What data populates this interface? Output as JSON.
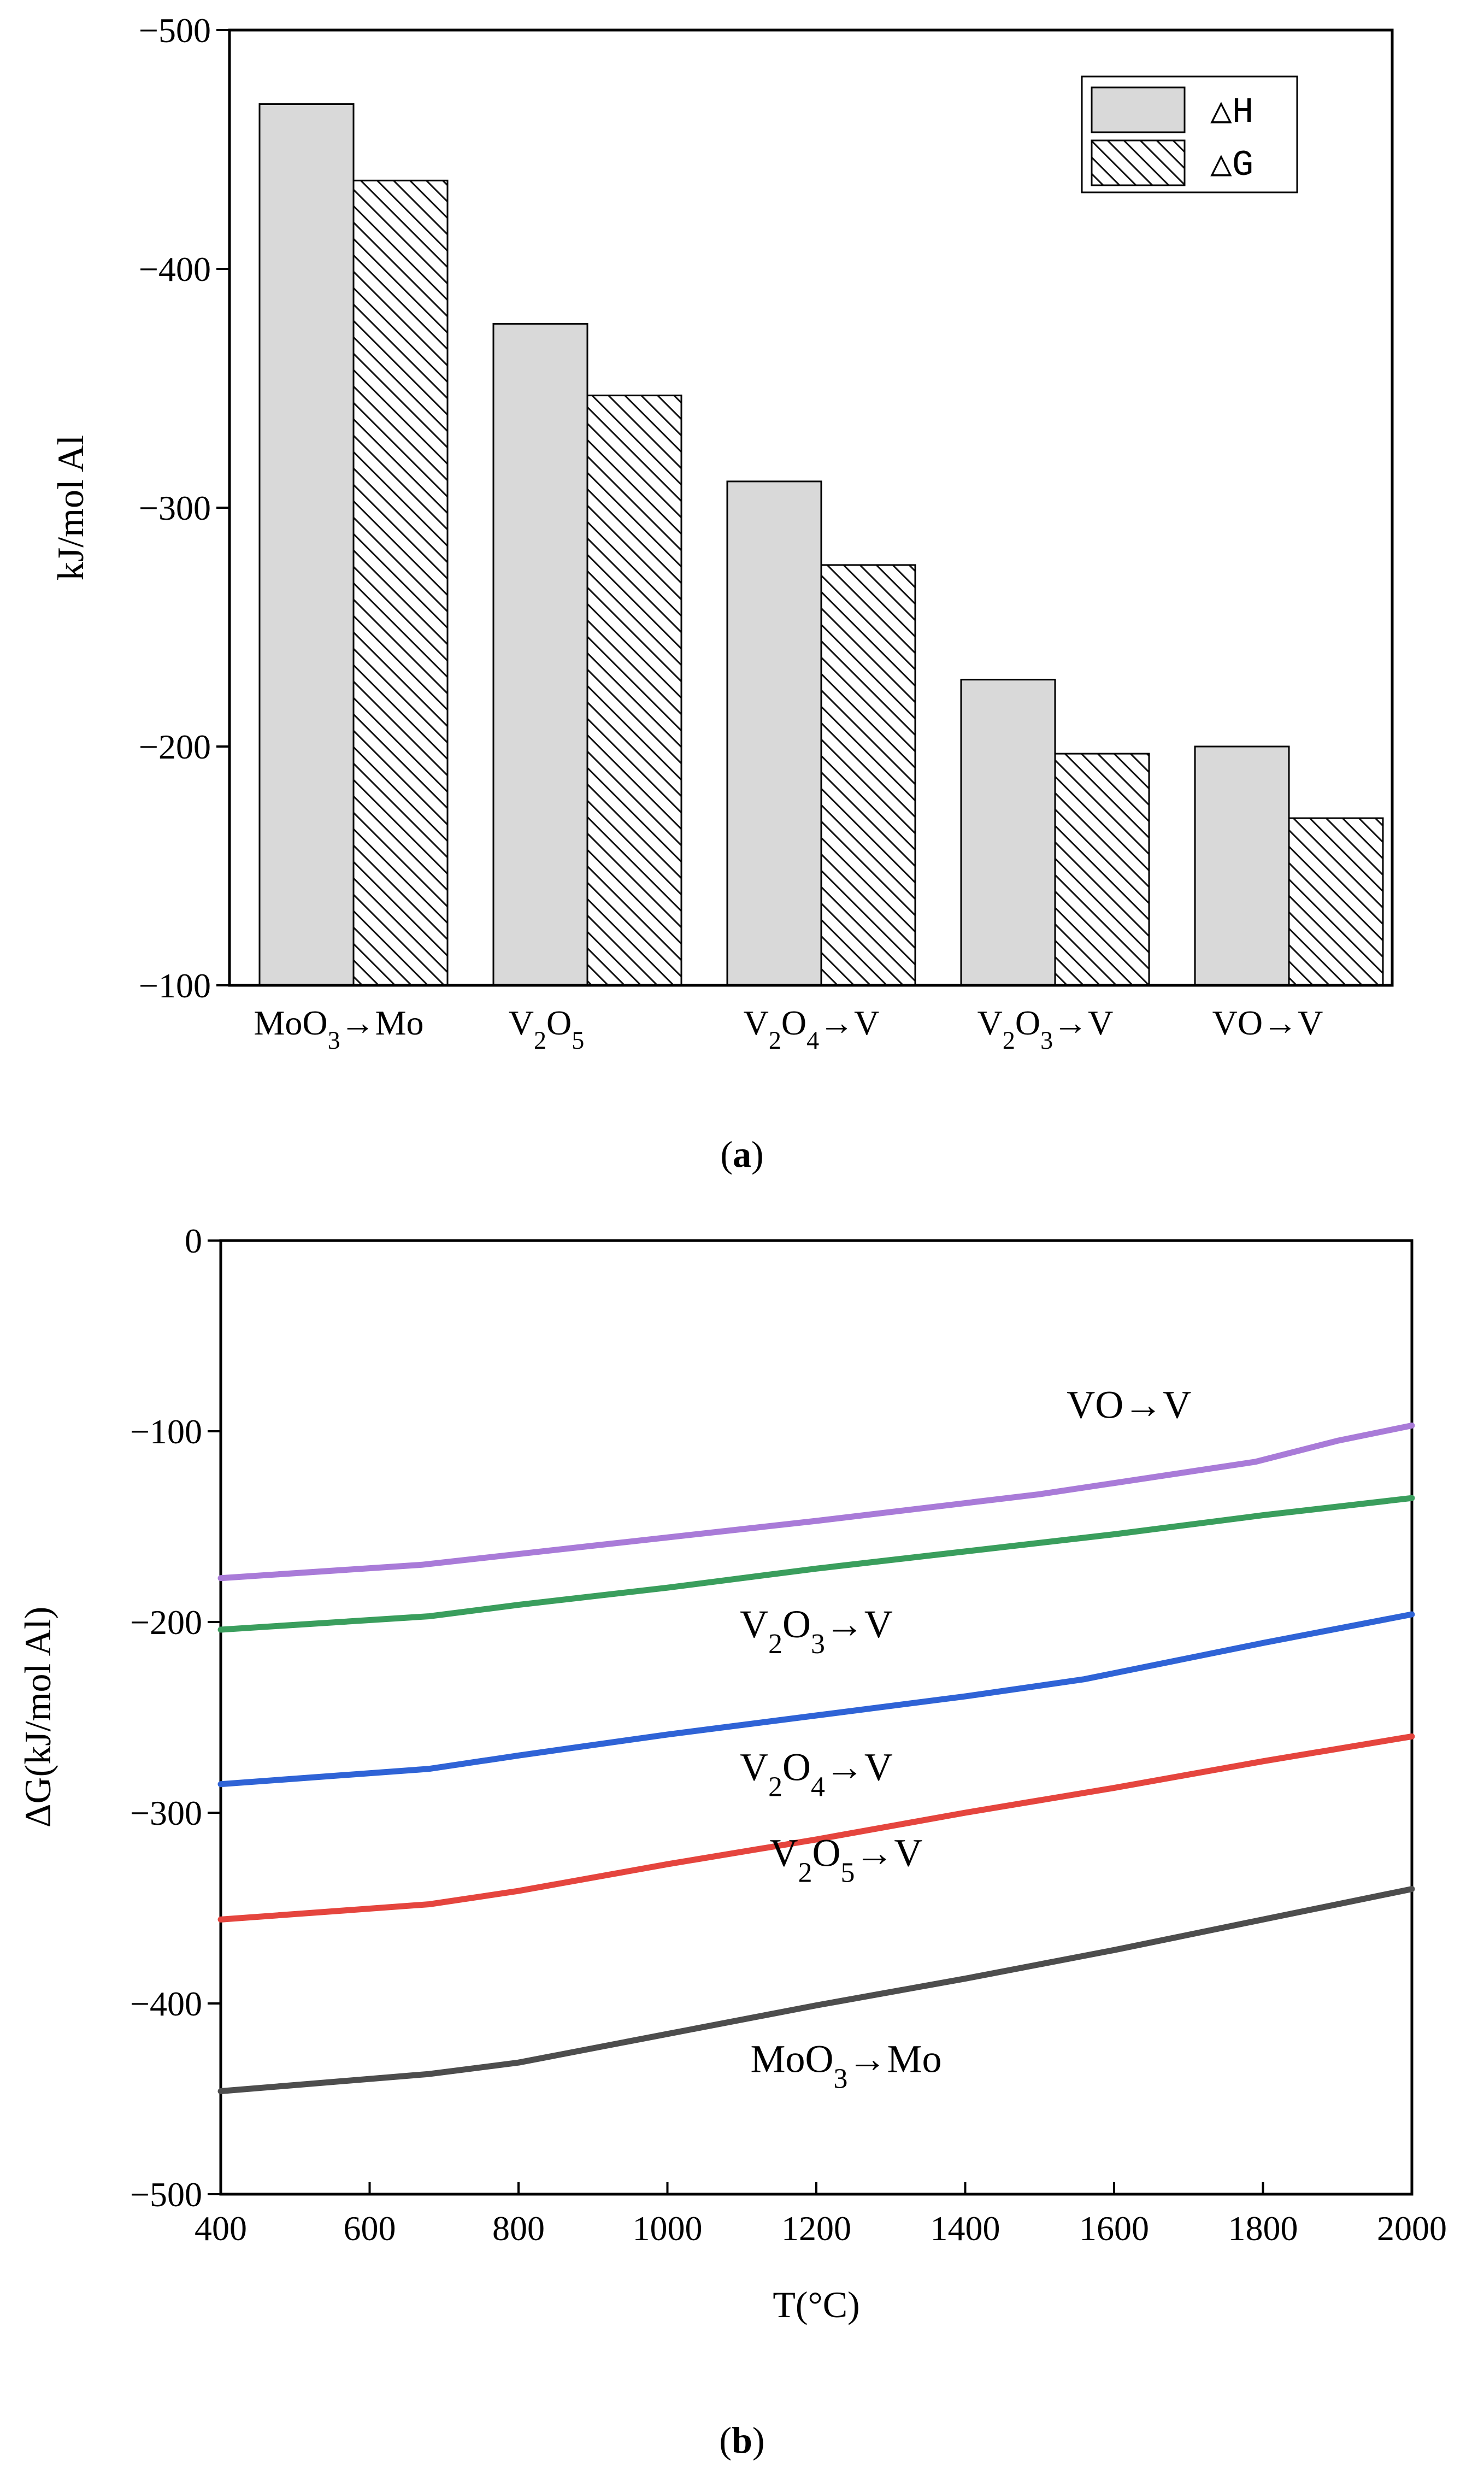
{
  "chart_data": [
    {
      "type": "bar",
      "panel_label": "a",
      "ylabel": "kJ/mol Al",
      "ylim": [
        -100,
        -500
      ],
      "yticks": [
        "−100",
        "−200",
        "−300",
        "−400",
        "−500"
      ],
      "ytick_values": [
        -100,
        -200,
        -300,
        -400,
        -500
      ],
      "categories": [
        {
          "name": "MoO3→Mo",
          "parts": [
            {
              "t": "MoO"
            },
            {
              "t": "3",
              "sub": true
            },
            {
              "t": "→Mo"
            }
          ]
        },
        {
          "name": "V2O5",
          "parts": [
            {
              "t": "V"
            },
            {
              "t": "2",
              "sub": true
            },
            {
              "t": "O"
            },
            {
              "t": "5",
              "sub": true
            }
          ]
        },
        {
          "name": "V2O4→V",
          "parts": [
            {
              "t": "V"
            },
            {
              "t": "2",
              "sub": true
            },
            {
              "t": "O"
            },
            {
              "t": "4",
              "sub": true
            },
            {
              "t": "→V"
            }
          ]
        },
        {
          "name": "V2O3→V",
          "parts": [
            {
              "t": "V"
            },
            {
              "t": "2",
              "sub": true
            },
            {
              "t": "O"
            },
            {
              "t": "3",
              "sub": true
            },
            {
              "t": "→V"
            }
          ]
        },
        {
          "name": "VO→V",
          "parts": [
            {
              "t": "VO→V"
            }
          ]
        }
      ],
      "series": [
        {
          "name": "△H",
          "fill": "#d9d9d9",
          "hatched": false,
          "values": [
            -469,
            -377,
            -311,
            -228,
            -200
          ]
        },
        {
          "name": "△G",
          "fill": "#ffffff",
          "hatched": true,
          "values": [
            -437,
            -347,
            -276,
            -197,
            -170
          ]
        }
      ],
      "legend_position": "top-right"
    },
    {
      "type": "line",
      "panel_label": "b",
      "xlabel": "T(°C)",
      "ylabel": "ΔG(kJ/mol Al)",
      "xlim": [
        400,
        2000
      ],
      "ylim": [
        -500,
        0
      ],
      "xticks": [
        400,
        600,
        800,
        1000,
        1200,
        1400,
        1600,
        1800,
        2000
      ],
      "yticks": [
        "−500",
        "−400",
        "−300",
        "−200",
        "−100",
        "0"
      ],
      "ytick_values": [
        -500,
        -400,
        -300,
        -200,
        -100,
        0
      ],
      "series": [
        {
          "name": "VO→V",
          "color": "#a97bd8",
          "label_parts": [
            {
              "t": "VO→V"
            }
          ],
          "label_at": [
            1620,
            -93
          ],
          "x": [
            400,
            670,
            900,
            1200,
            1500,
            1790,
            1900,
            2000
          ],
          "y": [
            -177,
            -170,
            -160,
            -147,
            -133,
            -116,
            -105,
            -97
          ]
        },
        {
          "name": "V2O3→V",
          "color": "#3a9e5d",
          "label_parts": [
            {
              "t": "V"
            },
            {
              "t": "2",
              "sub": true
            },
            {
              "t": "O"
            },
            {
              "t": "3",
              "sub": true
            },
            {
              "t": "→V"
            }
          ],
          "label_at": [
            1200,
            -208
          ],
          "x": [
            400,
            680,
            800,
            1000,
            1200,
            1400,
            1600,
            1800,
            2000
          ],
          "y": [
            -204,
            -197,
            -191,
            -182,
            -172,
            -163,
            -154,
            -144,
            -135
          ]
        },
        {
          "name": "V2O4→V",
          "color": "#2f63d6",
          "label_parts": [
            {
              "t": "V"
            },
            {
              "t": "2",
              "sub": true
            },
            {
              "t": "O"
            },
            {
              "t": "4",
              "sub": true
            },
            {
              "t": "→V"
            }
          ],
          "label_at": [
            1200,
            -283
          ],
          "x": [
            400,
            680,
            800,
            1000,
            1200,
            1400,
            1560,
            1800,
            2000
          ],
          "y": [
            -285,
            -277,
            -270,
            -259,
            -249,
            -239,
            -230,
            -211,
            -196
          ]
        },
        {
          "name": "V2O5→V",
          "color": "#e5453e",
          "label_parts": [
            {
              "t": "V"
            },
            {
              "t": "2",
              "sub": true
            },
            {
              "t": "O"
            },
            {
              "t": "5",
              "sub": true
            },
            {
              "t": "→V"
            }
          ],
          "label_at": [
            1240,
            -328
          ],
          "x": [
            400,
            680,
            800,
            1000,
            1200,
            1400,
            1600,
            1800,
            2000
          ],
          "y": [
            -356,
            -348,
            -341,
            -327,
            -314,
            -300,
            -287,
            -273,
            -260
          ]
        },
        {
          "name": "MoO3→Mo",
          "color": "#4d4d4d",
          "label_parts": [
            {
              "t": "MoO"
            },
            {
              "t": "3",
              "sub": true
            },
            {
              "t": "→Mo"
            }
          ],
          "label_at": [
            1240,
            -436
          ],
          "x": [
            400,
            680,
            800,
            1000,
            1200,
            1400,
            1600,
            1800,
            2000
          ],
          "y": [
            -446,
            -437,
            -431,
            -416,
            -401,
            -387,
            -372,
            -356,
            -340
          ]
        }
      ]
    }
  ]
}
